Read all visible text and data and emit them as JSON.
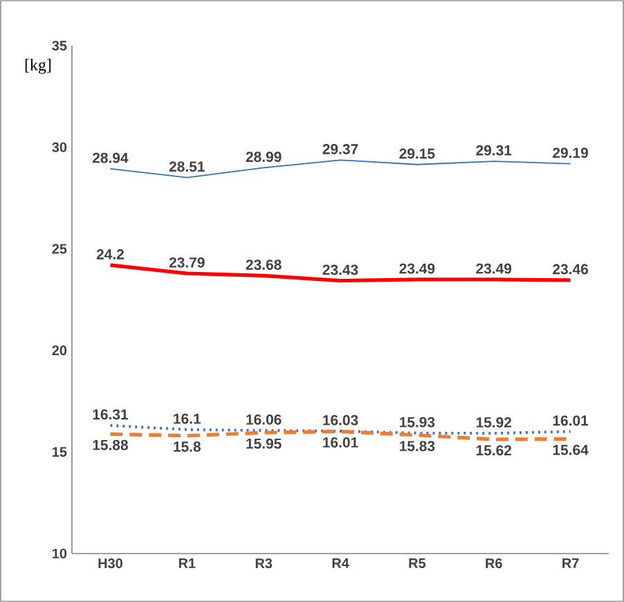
{
  "chart_data": {
    "type": "line",
    "ylabel": "[kg]",
    "categories": [
      "H30",
      "R1",
      "R3",
      "R4",
      "R5",
      "R6",
      "R7"
    ],
    "series": [
      {
        "color": "#2e75b6",
        "values": [
          28.94,
          28.51,
          28.99,
          29.37,
          29.15,
          29.31,
          29.19
        ],
        "line_style": "solid"
      },
      {
        "color": "#ff0000",
        "values": [
          24.2,
          23.79,
          23.68,
          23.43,
          23.49,
          23.49,
          23.46
        ],
        "line_style": "solid"
      },
      {
        "color": "#4472c4",
        "values": [
          16.31,
          16.1,
          16.06,
          16.03,
          15.93,
          15.92,
          16.01
        ],
        "line_style": "dotted"
      },
      {
        "color": "#ed7d31",
        "values": [
          15.88,
          15.8,
          15.95,
          16.01,
          15.83,
          15.62,
          15.64
        ],
        "line_style": "dashed"
      }
    ],
    "ylim": [
      10,
      35
    ],
    "yticks": [
      10,
      15,
      20,
      25,
      30,
      35
    ],
    "data_labels": true
  }
}
